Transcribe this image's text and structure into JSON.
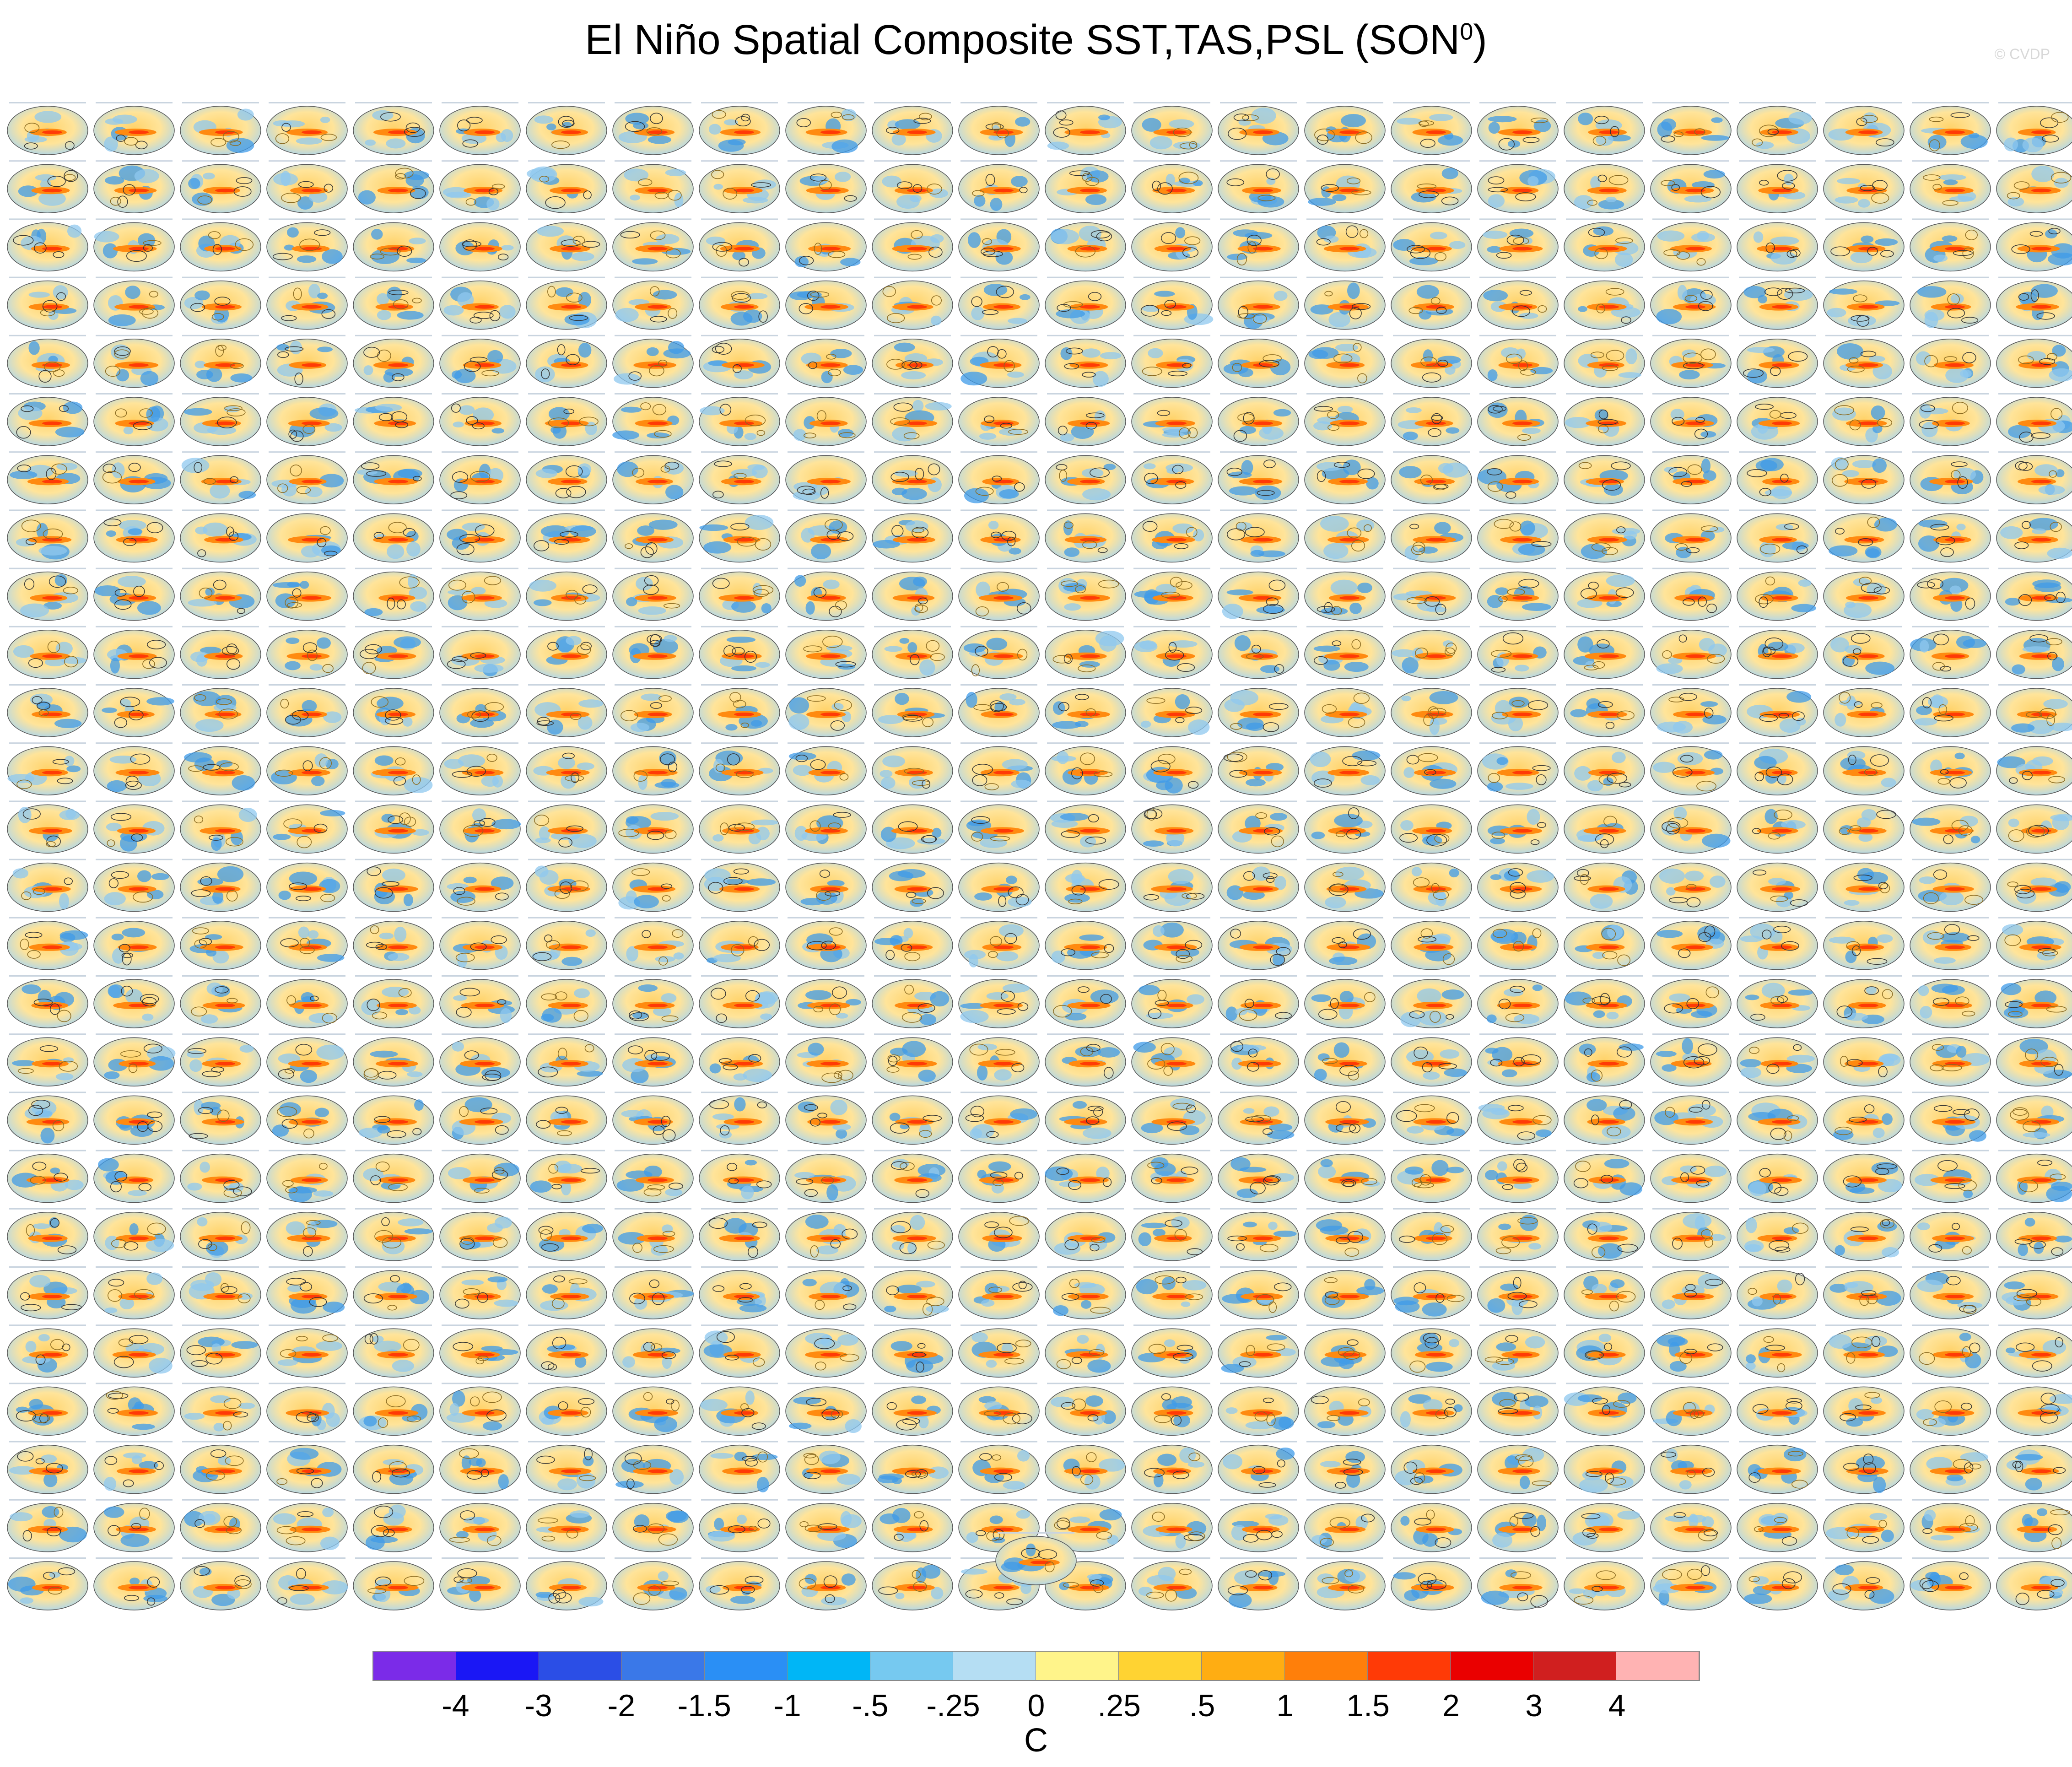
{
  "title": {
    "main": "El Niño Spatial Composite SST,TAS,PSL (SON",
    "superscript": "0",
    "close": ")"
  },
  "watermark": "© CVDP",
  "panel_grid": {
    "rows": 26,
    "columns": 24,
    "extra_panels": 1,
    "description": "small global map panels"
  },
  "colorbar": {
    "colors": [
      "#7b2be8",
      "#1a17f5",
      "#2b4ee6",
      "#3a78e8",
      "#2a8ff5",
      "#00b6f6",
      "#76c9f0",
      "#b5def3",
      "#fff48a",
      "#ffd332",
      "#ffad12",
      "#ff7f0a",
      "#ff3a06",
      "#ea0000",
      "#d01f1f",
      "#ffb3b3"
    ],
    "labels": [
      "-4",
      "-3",
      "-2",
      "-1.5",
      "-1",
      "-.5",
      "-.25",
      "0",
      ".25",
      ".5",
      "1",
      "1.5",
      "2",
      "3",
      "4"
    ],
    "units": "C"
  }
}
